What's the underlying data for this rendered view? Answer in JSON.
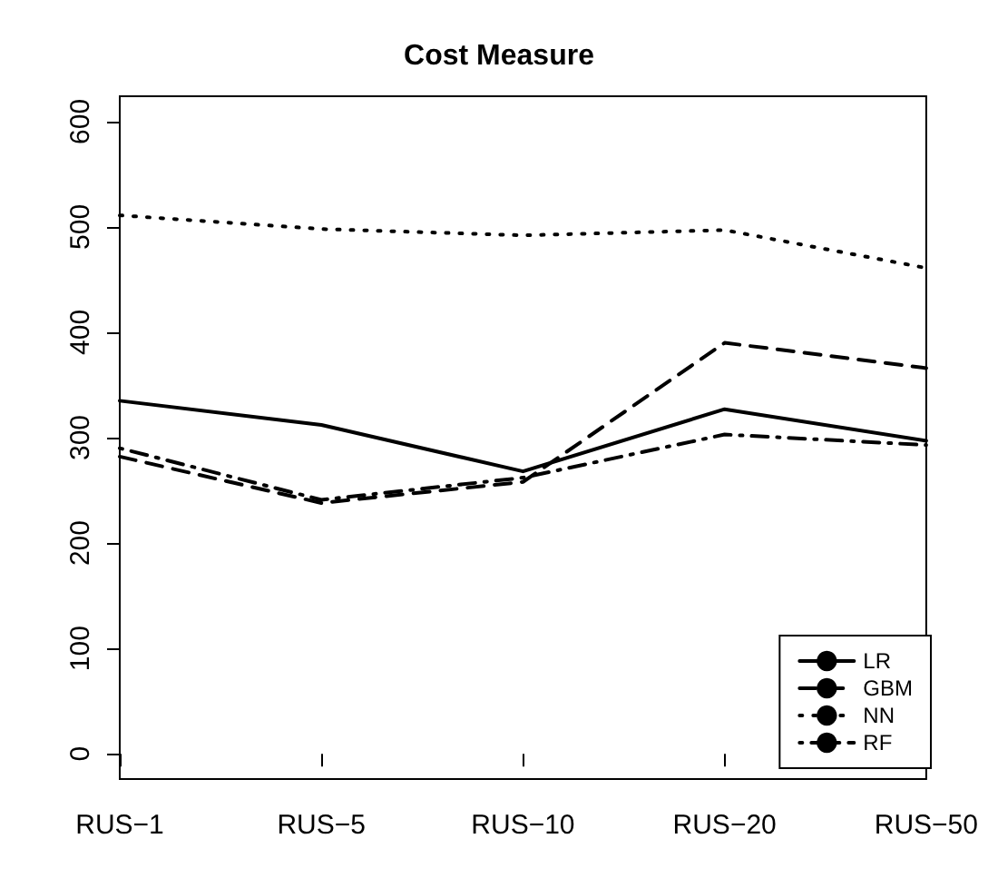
{
  "chart_data": {
    "type": "line",
    "title": "Cost Measure",
    "categories": [
      "RUS−1",
      "RUS−5",
      "RUS−10",
      "RUS−20",
      "RUS−50"
    ],
    "series": [
      {
        "name": "LR",
        "color": "#000000",
        "line_style": "solid",
        "values": [
          335,
          312,
          268,
          327,
          297
        ]
      },
      {
        "name": "GBM",
        "color": "#000000",
        "line_style": "dashed",
        "values": [
          282,
          238,
          258,
          390,
          366
        ]
      },
      {
        "name": "NN",
        "color": "#000000",
        "line_style": "dotted",
        "values": [
          511,
          498,
          492,
          497,
          461
        ]
      },
      {
        "name": "RF",
        "color": "#000000",
        "line_style": "dashdot",
        "values": [
          290,
          241,
          262,
          303,
          293
        ]
      }
    ],
    "ylim": [
      -24,
      624
    ],
    "yticks": [
      0,
      100,
      200,
      300,
      400,
      500,
      600
    ],
    "grid": false,
    "legend": "bottom right",
    "marker": "none"
  }
}
